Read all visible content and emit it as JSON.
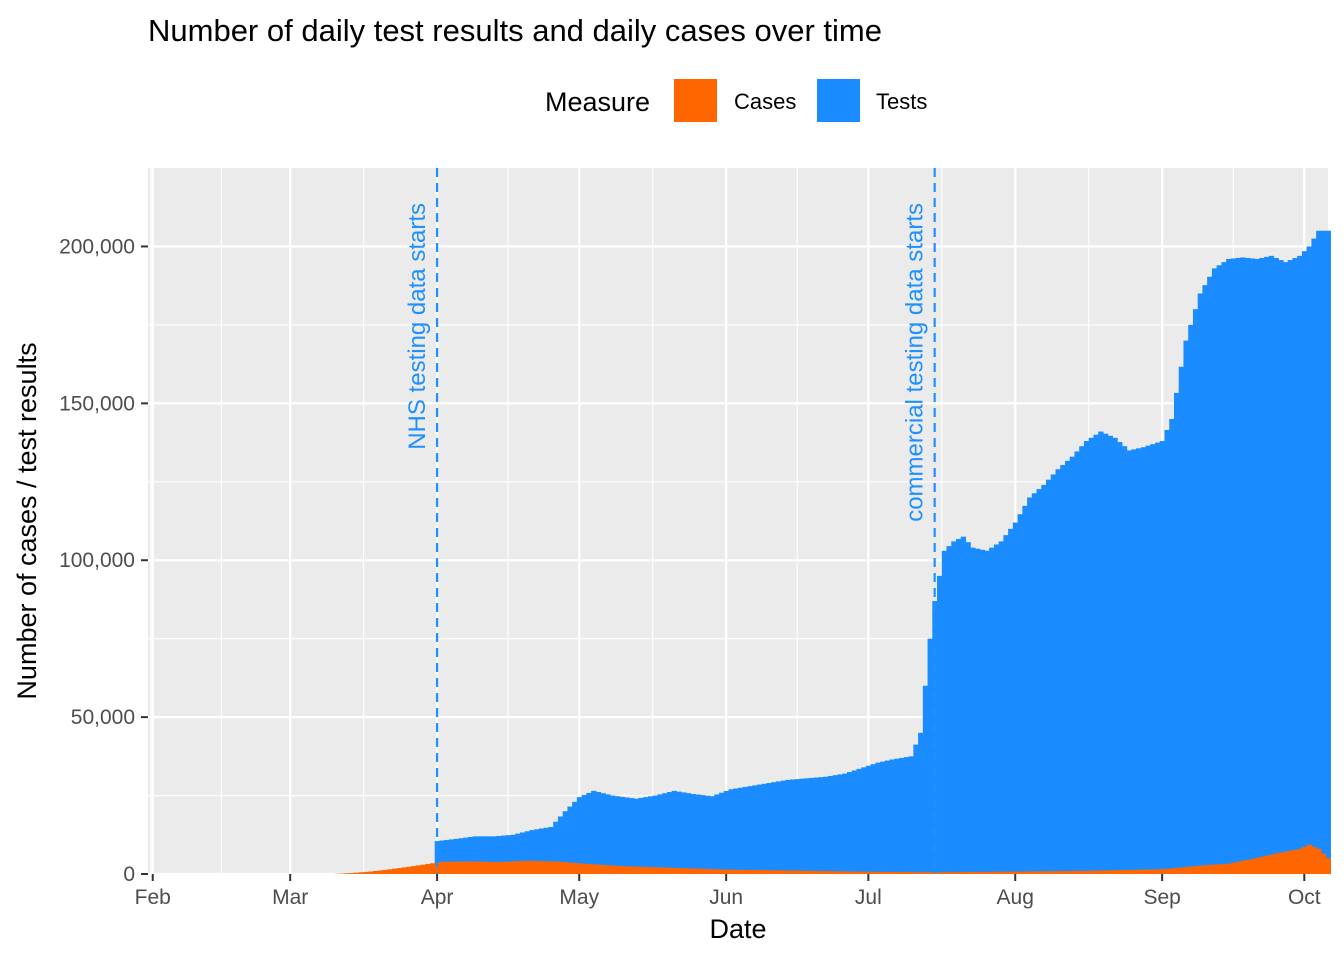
{
  "chart_data": {
    "type": "area",
    "title": "Number of daily test results and daily cases over time",
    "xlabel": "Date",
    "ylabel": "Number of cases / test results",
    "x_ticks": [
      "Feb",
      "Mar",
      "Apr",
      "May",
      "Jun",
      "Jul",
      "Aug",
      "Sep",
      "Oct"
    ],
    "x_range": [
      "2020-01-31",
      "2020-10-06"
    ],
    "y_ticks": [
      "0",
      "50,000",
      "100,000",
      "150,000",
      "200,000"
    ],
    "ylim": [
      0,
      225000
    ],
    "grid": true,
    "legend": {
      "title": "Measure",
      "position": "top",
      "entries": [
        {
          "label": "Cases",
          "color": "#FF6600"
        },
        {
          "label": "Tests",
          "color": "#1A8CFF"
        }
      ]
    },
    "annotations": [
      {
        "date": "2020-04-01",
        "label": "NHS testing data starts",
        "color": "#1E90FF"
      },
      {
        "date": "2020-07-15",
        "label": "commercial testing data starts",
        "color": "#1E90FF"
      }
    ],
    "series": [
      {
        "name": "Tests",
        "color": "#1A8CFF",
        "points": [
          [
            "2020-04-01",
            10500
          ],
          [
            "2020-04-05",
            11200
          ],
          [
            "2020-04-09",
            12000
          ],
          [
            "2020-04-13",
            12000
          ],
          [
            "2020-04-17",
            12500
          ],
          [
            "2020-04-21",
            14000
          ],
          [
            "2020-04-25",
            15000
          ],
          [
            "2020-04-28",
            20000
          ],
          [
            "2020-05-01",
            24500
          ],
          [
            "2020-05-04",
            26500
          ],
          [
            "2020-05-08",
            25000
          ],
          [
            "2020-05-13",
            24000
          ],
          [
            "2020-05-17",
            25000
          ],
          [
            "2020-05-21",
            26500
          ],
          [
            "2020-05-25",
            25500
          ],
          [
            "2020-05-29",
            24800
          ],
          [
            "2020-06-02",
            27000
          ],
          [
            "2020-06-06",
            28000
          ],
          [
            "2020-06-10",
            29000
          ],
          [
            "2020-06-14",
            30000
          ],
          [
            "2020-06-18",
            30500
          ],
          [
            "2020-06-22",
            31000
          ],
          [
            "2020-06-26",
            32000
          ],
          [
            "2020-06-30",
            34000
          ],
          [
            "2020-07-03",
            35500
          ],
          [
            "2020-07-06",
            36500
          ],
          [
            "2020-07-10",
            37500
          ],
          [
            "2020-07-12",
            45000
          ],
          [
            "2020-07-13",
            60000
          ],
          [
            "2020-07-14",
            75000
          ],
          [
            "2020-07-15",
            87000
          ],
          [
            "2020-07-17",
            103000
          ],
          [
            "2020-07-19",
            106000
          ],
          [
            "2020-07-21",
            107500
          ],
          [
            "2020-07-23",
            104000
          ],
          [
            "2020-07-26",
            103000
          ],
          [
            "2020-07-29",
            106000
          ],
          [
            "2020-08-01",
            112000
          ],
          [
            "2020-08-04",
            120000
          ],
          [
            "2020-08-07",
            124000
          ],
          [
            "2020-08-10",
            129000
          ],
          [
            "2020-08-13",
            133000
          ],
          [
            "2020-08-16",
            138000
          ],
          [
            "2020-08-19",
            141000
          ],
          [
            "2020-08-22",
            139000
          ],
          [
            "2020-08-25",
            135000
          ],
          [
            "2020-08-28",
            136000
          ],
          [
            "2020-09-01",
            138000
          ],
          [
            "2020-09-03",
            145000
          ],
          [
            "2020-09-06",
            170000
          ],
          [
            "2020-09-09",
            185000
          ],
          [
            "2020-09-12",
            193000
          ],
          [
            "2020-09-15",
            196000
          ],
          [
            "2020-09-18",
            196500
          ],
          [
            "2020-09-21",
            196000
          ],
          [
            "2020-09-24",
            197000
          ],
          [
            "2020-09-27",
            195000
          ],
          [
            "2020-09-30",
            197000
          ],
          [
            "2020-10-02",
            200000
          ],
          [
            "2020-10-04",
            205000
          ],
          [
            "2020-10-06",
            205000
          ]
        ]
      },
      {
        "name": "Cases",
        "color": "#FF6600",
        "points": [
          [
            "2020-03-10",
            0
          ],
          [
            "2020-03-14",
            300
          ],
          [
            "2020-03-18",
            800
          ],
          [
            "2020-03-22",
            1500
          ],
          [
            "2020-03-26",
            2300
          ],
          [
            "2020-03-30",
            3200
          ],
          [
            "2020-04-02",
            3900
          ],
          [
            "2020-04-08",
            4000
          ],
          [
            "2020-04-14",
            3800
          ],
          [
            "2020-04-20",
            4200
          ],
          [
            "2020-04-26",
            4000
          ],
          [
            "2020-05-02",
            3300
          ],
          [
            "2020-05-10",
            2500
          ],
          [
            "2020-05-20",
            2000
          ],
          [
            "2020-06-01",
            1400
          ],
          [
            "2020-06-15",
            1100
          ],
          [
            "2020-07-01",
            700
          ],
          [
            "2020-07-15",
            550
          ],
          [
            "2020-08-01",
            750
          ],
          [
            "2020-08-15",
            1000
          ],
          [
            "2020-09-01",
            1500
          ],
          [
            "2020-09-10",
            2800
          ],
          [
            "2020-09-15",
            3300
          ],
          [
            "2020-09-20",
            4800
          ],
          [
            "2020-09-25",
            6500
          ],
          [
            "2020-09-30",
            8000
          ],
          [
            "2020-10-02",
            9300
          ],
          [
            "2020-10-04",
            8000
          ],
          [
            "2020-10-06",
            5000
          ]
        ]
      }
    ]
  }
}
